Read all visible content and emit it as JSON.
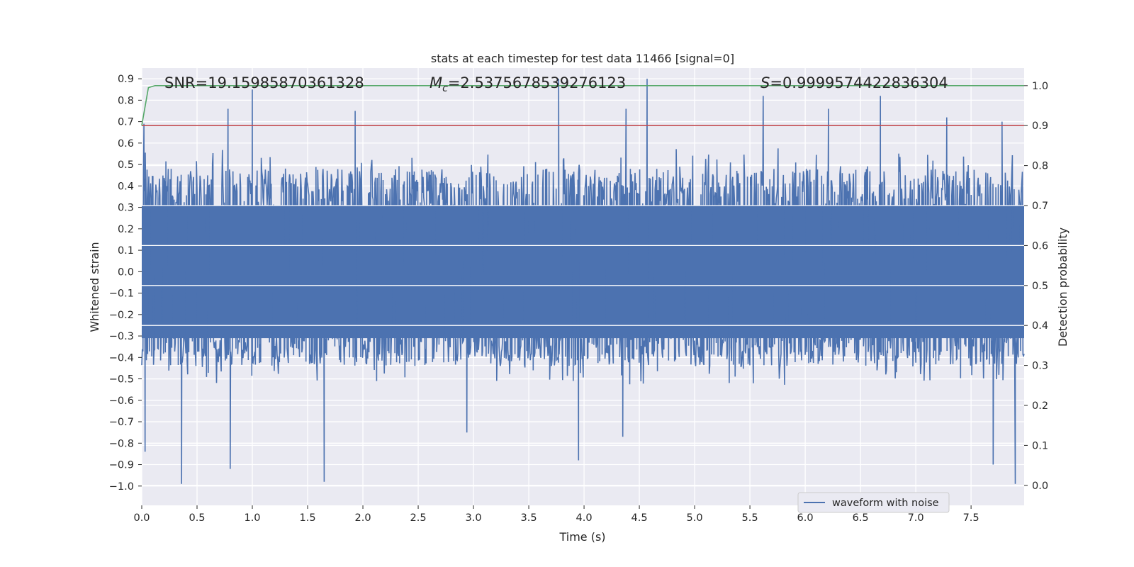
{
  "chart_data": {
    "type": "line",
    "title": "stats at each timestep for test data 11466 [signal=0]",
    "xlabel": "Time (s)",
    "ylabel": "Whitened strain",
    "y2label": "Detection probability",
    "xlim": [
      0.0,
      7.98
    ],
    "ylim": [
      -1.09,
      0.95
    ],
    "y2lim": [
      -0.05,
      1.044
    ],
    "xticks": [
      0.0,
      0.5,
      1.0,
      1.5,
      2.0,
      2.5,
      3.0,
      3.5,
      4.0,
      4.5,
      5.0,
      5.5,
      6.0,
      6.5,
      7.0,
      7.5
    ],
    "xtick_labels": [
      "0.0",
      "0.5",
      "1.0",
      "1.5",
      "2.0",
      "2.5",
      "3.0",
      "3.5",
      "4.0",
      "4.5",
      "5.0",
      "5.5",
      "6.0",
      "6.5",
      "7.0",
      "7.5"
    ],
    "yticks": [
      0.9,
      0.8,
      0.7,
      0.6,
      0.5,
      0.4,
      0.3,
      0.2,
      0.1,
      0.0,
      -0.1,
      -0.2,
      -0.3,
      -0.4,
      -0.5,
      -0.6,
      -0.7,
      -0.8,
      -0.9,
      -1.0
    ],
    "ytick_labels": [
      "0.9",
      "0.8",
      "0.7",
      "0.6",
      "0.5",
      "0.4",
      "0.3",
      "0.2",
      "0.1",
      "0.0",
      "−0.1",
      "−0.2",
      "−0.3",
      "−0.4",
      "−0.5",
      "−0.6",
      "−0.7",
      "−0.8",
      "−0.9",
      "−1.0"
    ],
    "y2ticks": [
      1.0,
      0.9,
      0.8,
      0.7,
      0.6,
      0.5,
      0.4,
      0.3,
      0.2,
      0.1,
      0.0
    ],
    "y2tick_labels": [
      "1.0",
      "0.9",
      "0.8",
      "0.7",
      "0.6",
      "0.5",
      "0.4",
      "0.3",
      "0.2",
      "0.1",
      "0.0"
    ],
    "stats": {
      "snr": "SNR=19.15985870361328",
      "mc_symbol": "M",
      "mc_sub": "c",
      "mc_value": "=2.5375678539276123",
      "s_symbol": "S",
      "s_value": "=0.9999574422836304"
    },
    "series": [
      {
        "name": "waveform with noise",
        "axis": "left",
        "color": "#4c72b0",
        "note": "dense whitened noise, mostly within [-0.32, 0.52]",
        "upper_spikes": [
          [
            0.02,
            0.69
          ],
          [
            0.78,
            0.76
          ],
          [
            1.0,
            0.85
          ],
          [
            1.93,
            0.75
          ],
          [
            3.77,
            0.9
          ],
          [
            4.38,
            0.76
          ],
          [
            4.57,
            0.9
          ],
          [
            5.62,
            0.82
          ],
          [
            6.21,
            0.76
          ],
          [
            6.68,
            0.82
          ],
          [
            7.28,
            0.72
          ],
          [
            7.78,
            0.7
          ]
        ],
        "lower_spikes": [
          [
            0.03,
            -0.84
          ],
          [
            0.36,
            -0.99
          ],
          [
            0.8,
            -0.92
          ],
          [
            1.65,
            -0.98
          ],
          [
            2.94,
            -0.75
          ],
          [
            3.95,
            -0.88
          ],
          [
            4.35,
            -0.77
          ],
          [
            7.7,
            -0.9
          ],
          [
            7.9,
            -0.99
          ]
        ]
      },
      {
        "name": "detection probability",
        "axis": "right",
        "color": "#55a868",
        "x": [
          0.0,
          0.06,
          0.12,
          7.98
        ],
        "y": [
          0.9,
          0.995,
          1.0,
          1.0
        ]
      },
      {
        "name": "threshold",
        "axis": "right",
        "color": "#c44e52",
        "x": [
          0.0,
          7.98
        ],
        "y": [
          0.9,
          0.9
        ]
      }
    ],
    "legend": {
      "position": "bottom-right",
      "entries": [
        "waveform with noise"
      ]
    },
    "grid": true,
    "colors": {
      "background": "#eaeaf2",
      "grid": "#ffffff",
      "waveform": "#4c72b0",
      "probability": "#55a868",
      "threshold": "#c44e52"
    }
  }
}
